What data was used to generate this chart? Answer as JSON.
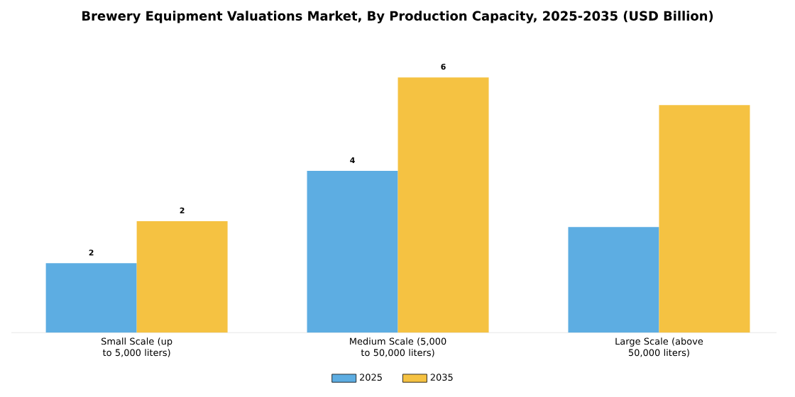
{
  "chart_data": {
    "type": "bar",
    "title": "Brewery Equipment Valuations Market, By Production Capacity, 2025-2035 (USD Billion)",
    "legend": "bottom",
    "categories": [
      "Small Scale (up to 5,000 liters)",
      "Medium Scale (5,000 to 50,000 liters)",
      "Large Scale (above 50,000 liters)"
    ],
    "series": [
      {
        "name": "2025",
        "color": "#5dade2",
        "values": [
          1.53,
          3.57,
          2.33
        ],
        "value_labels": [
          "2",
          "4",
          null
        ]
      },
      {
        "name": "2035",
        "color": "#f5c242",
        "values": [
          2.46,
          5.63,
          5.02
        ],
        "value_labels": [
          "2",
          "6",
          null
        ]
      }
    ]
  }
}
